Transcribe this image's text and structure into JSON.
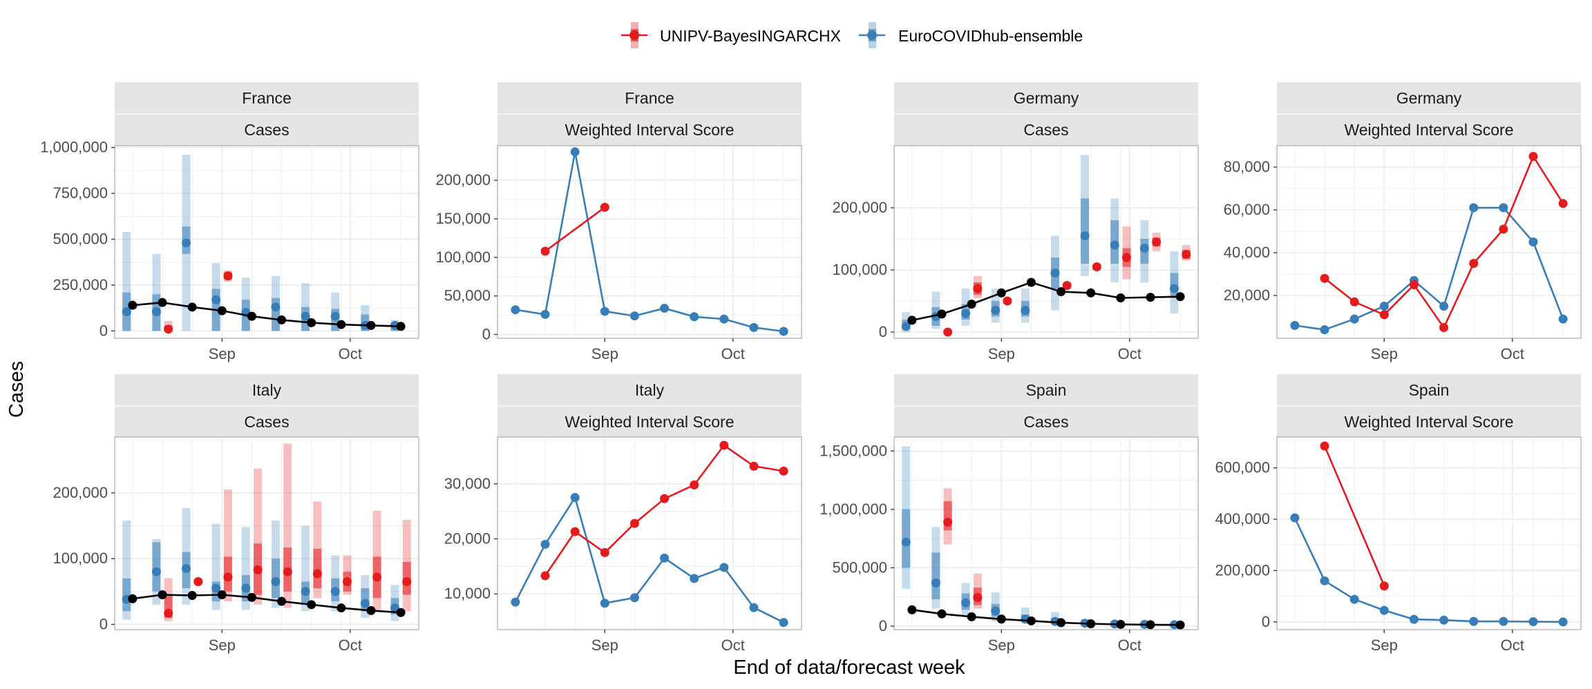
{
  "colors": {
    "model": "#e41a1c",
    "ensemble": "#377eb8",
    "truth": "#000000",
    "strip_bg": "#e5e5e5",
    "grid": "#ebebeb",
    "panel_border": "#b3b3b3"
  },
  "legend": {
    "model": "UNIPV-BayesINGARCHX",
    "ensemble": "EuroCOVIDhub-ensemble"
  },
  "axis_titles": {
    "y": "Cases",
    "x": "End of data/forecast week"
  },
  "chart_data": [
    {
      "type": "line",
      "country": "France",
      "measure": "Cases",
      "x_ticks": [
        "Sep",
        "Oct"
      ],
      "y_ticks": [
        "0",
        "250,000",
        "500,000",
        "750,000",
        "1,000,000"
      ],
      "ylim": [
        -40000,
        1010000
      ],
      "truth": [
        [
          -3,
          140000
        ],
        [
          -2,
          155000
        ],
        [
          -1,
          130000
        ],
        [
          0,
          110000
        ],
        [
          1,
          80000
        ],
        [
          2,
          60000
        ],
        [
          3,
          45000
        ],
        [
          4,
          35000
        ],
        [
          5,
          30000
        ],
        [
          6,
          25000
        ]
      ],
      "ensemble": [
        [
          -3.2,
          105000,
          50,
          540000,
          70,
          210000
        ],
        [
          -2.2,
          105000,
          50,
          420000,
          60,
          200000
        ],
        [
          -1.2,
          480000,
          200,
          960000,
          420000,
          570000
        ],
        [
          -0.2,
          170000,
          70,
          370000,
          120,
          230000
        ],
        [
          0.8,
          100000,
          50,
          290000,
          60,
          170000
        ],
        [
          1.8,
          130000,
          50,
          300000,
          80,
          180000
        ],
        [
          2.8,
          80000,
          40,
          260000,
          50,
          130000
        ],
        [
          3.8,
          80000,
          30,
          210000,
          50,
          120000
        ],
        [
          4.8,
          30000,
          20,
          140000,
          25,
          90000
        ],
        [
          5.8,
          30000,
          10,
          60000,
          20,
          45000
        ]
      ],
      "model": [
        [
          -1.8,
          10000,
          0,
          55000,
          0,
          30000
        ],
        [
          0.2,
          300000,
          270000,
          330000,
          280000,
          320000
        ]
      ]
    },
    {
      "type": "line",
      "country": "France",
      "measure": "Weighted Interval Score",
      "x_ticks": [
        "Sep",
        "Oct"
      ],
      "y_ticks": [
        "0",
        "50,000",
        "100,000",
        "150,000",
        "200,000"
      ],
      "ylim": [
        -5000,
        245000
      ],
      "ensemble_line": [
        [
          -3,
          32000
        ],
        [
          -2,
          26000
        ],
        [
          -1,
          237000
        ],
        [
          0,
          30000
        ],
        [
          1,
          24000
        ],
        [
          2,
          34000
        ],
        [
          3,
          23000
        ],
        [
          4,
          20000
        ],
        [
          5,
          9000
        ],
        [
          6,
          4000
        ]
      ],
      "model_line": [
        [
          -2,
          108000
        ],
        [
          0,
          165000
        ]
      ]
    },
    {
      "type": "line",
      "country": "Germany",
      "measure": "Cases",
      "x_ticks": [
        "Sep",
        "Oct"
      ],
      "y_ticks": [
        "0",
        "100,000",
        "200,000"
      ],
      "ylim": [
        -10000,
        300000
      ],
      "truth": [
        [
          -3,
          19000
        ],
        [
          -2,
          29000
        ],
        [
          -1,
          45000
        ],
        [
          0,
          63000
        ],
        [
          1,
          80000
        ],
        [
          2,
          65000
        ],
        [
          3,
          63000
        ],
        [
          4,
          55000
        ],
        [
          5,
          56000
        ],
        [
          6,
          57000
        ]
      ],
      "ensemble": [
        [
          -3.2,
          9000,
          0,
          32000,
          5000,
          20000
        ],
        [
          -2.2,
          25000,
          5000,
          65000,
          10000,
          40000
        ],
        [
          -1.2,
          30000,
          10000,
          70000,
          20000,
          45000
        ],
        [
          -0.2,
          35000,
          15000,
          70000,
          25000,
          50000
        ],
        [
          0.8,
          35000,
          15000,
          70000,
          25000,
          50000
        ],
        [
          1.8,
          95000,
          35000,
          155000,
          70000,
          120000
        ],
        [
          2.8,
          155000,
          90000,
          285000,
          110000,
          215000
        ],
        [
          3.8,
          140000,
          80000,
          215000,
          110000,
          180000
        ],
        [
          4.8,
          135000,
          80000,
          180000,
          110000,
          150000
        ],
        [
          5.8,
          70000,
          30000,
          130000,
          55000,
          95000
        ]
      ],
      "model": [
        [
          -1.8,
          0,
          0,
          0,
          0,
          0
        ],
        [
          -0.8,
          70000,
          55000,
          90000,
          60000,
          80000
        ],
        [
          0.2,
          50000,
          45000,
          55000,
          47000,
          53000
        ],
        [
          2.2,
          75000,
          70000,
          80000,
          72000,
          78000
        ],
        [
          3.2,
          105000,
          100000,
          110000,
          102000,
          108000
        ],
        [
          4.2,
          120000,
          85000,
          170000,
          105000,
          135000
        ],
        [
          5.2,
          145000,
          130000,
          160000,
          138000,
          152000
        ],
        [
          6.2,
          125000,
          115000,
          140000,
          118000,
          132000
        ]
      ]
    },
    {
      "type": "line",
      "country": "Germany",
      "measure": "Weighted Interval Score",
      "x_ticks": [
        "Sep",
        "Oct"
      ],
      "y_ticks": [
        "20,000",
        "40,000",
        "60,000",
        "80,000"
      ],
      "ylim": [
        0,
        90000
      ],
      "ensemble_line": [
        [
          -3,
          6000
        ],
        [
          -2,
          4000
        ],
        [
          -1,
          9000
        ],
        [
          0,
          15000
        ],
        [
          1,
          27000
        ],
        [
          2,
          15000
        ],
        [
          3,
          61000
        ],
        [
          4,
          61000
        ],
        [
          5,
          45000
        ],
        [
          6,
          9000
        ]
      ],
      "model_line": [
        [
          -2,
          28000
        ],
        [
          -1,
          17000
        ],
        [
          0,
          11000
        ],
        [
          1,
          25000
        ],
        [
          2,
          5000
        ],
        [
          3,
          35000
        ],
        [
          4,
          51000
        ],
        [
          5,
          85000
        ],
        [
          6,
          63000
        ]
      ]
    },
    {
      "type": "line",
      "country": "Italy",
      "measure": "Cases",
      "x_ticks": [
        "Sep",
        "Oct"
      ],
      "y_ticks": [
        "0",
        "100,000",
        "200,000"
      ],
      "ylim": [
        -8000,
        285000
      ],
      "truth": [
        [
          -3,
          39000
        ],
        [
          -2,
          45000
        ],
        [
          -1,
          44000
        ],
        [
          0,
          45000
        ],
        [
          1,
          41000
        ],
        [
          2,
          35000
        ],
        [
          3,
          30000
        ],
        [
          4,
          25000
        ],
        [
          5,
          21000
        ],
        [
          6,
          18000
        ]
      ],
      "ensemble": [
        [
          -3.2,
          38000,
          7000,
          158000,
          20000,
          70000
        ],
        [
          -2.2,
          80000,
          30000,
          130000,
          50000,
          125000
        ],
        [
          -1.2,
          85000,
          30000,
          177000,
          55000,
          110000
        ],
        [
          -0.2,
          55000,
          22000,
          153000,
          35000,
          65000
        ],
        [
          0.8,
          55000,
          22000,
          148000,
          35000,
          75000
        ],
        [
          1.8,
          65000,
          25000,
          158000,
          40000,
          100000
        ],
        [
          2.8,
          50000,
          20000,
          150000,
          30000,
          65000
        ],
        [
          3.8,
          50000,
          20000,
          105000,
          35000,
          70000
        ],
        [
          4.8,
          32000,
          10000,
          75000,
          20000,
          55000
        ],
        [
          5.8,
          25000,
          5000,
          60000,
          15000,
          40000
        ]
      ],
      "model": [
        [
          -1.8,
          17000,
          5000,
          70000,
          10000,
          45000
        ],
        [
          -0.8,
          65000,
          60000,
          70000,
          62000,
          68000
        ],
        [
          0.2,
          72000,
          35000,
          205000,
          50000,
          103000
        ],
        [
          1.2,
          83000,
          30000,
          237000,
          45000,
          123000
        ],
        [
          2.2,
          80000,
          25000,
          275000,
          50000,
          117000
        ],
        [
          3.2,
          77000,
          40000,
          187000,
          55000,
          115000
        ],
        [
          4.2,
          65000,
          45000,
          105000,
          50000,
          80000
        ],
        [
          5.2,
          72000,
          20000,
          173000,
          40000,
          103000
        ],
        [
          6.2,
          65000,
          20000,
          159000,
          45000,
          95000
        ]
      ]
    },
    {
      "type": "line",
      "country": "Italy",
      "measure": "Weighted Interval Score",
      "x_ticks": [
        "Sep",
        "Oct"
      ],
      "y_ticks": [
        "10,000",
        "20,000",
        "30,000"
      ],
      "ylim": [
        3500,
        38500
      ],
      "ensemble_line": [
        [
          -3,
          8500
        ],
        [
          -2,
          19000
        ],
        [
          -1,
          27500
        ],
        [
          0,
          8300
        ],
        [
          1,
          9300
        ],
        [
          2,
          16500
        ],
        [
          3,
          12800
        ],
        [
          4,
          14800
        ],
        [
          5,
          7500
        ],
        [
          6,
          4800
        ]
      ],
      "model_line": [
        [
          -2,
          13300
        ],
        [
          -1,
          21300
        ],
        [
          0,
          17500
        ],
        [
          1,
          22800
        ],
        [
          2,
          27300
        ],
        [
          3,
          29800
        ],
        [
          4,
          37000
        ],
        [
          5,
          33200
        ],
        [
          6,
          32300
        ]
      ]
    },
    {
      "type": "line",
      "country": "Spain",
      "measure": "Cases",
      "x_ticks": [
        "Sep",
        "Oct"
      ],
      "y_ticks": [
        "0",
        "500,000",
        "1,000,000",
        "1,500,000"
      ],
      "ylim": [
        -30000,
        1620000
      ],
      "truth": [
        [
          -3,
          140000
        ],
        [
          -2,
          105000
        ],
        [
          -1,
          80000
        ],
        [
          0,
          60000
        ],
        [
          1,
          45000
        ],
        [
          2,
          30000
        ],
        [
          3,
          20000
        ],
        [
          4,
          15000
        ],
        [
          5,
          12000
        ],
        [
          6,
          10000
        ]
      ],
      "ensemble": [
        [
          -3.2,
          720000,
          320000,
          1540000,
          500000,
          1000000
        ],
        [
          -2.2,
          370000,
          150000,
          850000,
          230000,
          630000
        ],
        [
          -1.2,
          200000,
          80000,
          370000,
          140000,
          280000
        ],
        [
          -0.2,
          130000,
          40000,
          290000,
          80000,
          190000
        ],
        [
          0.8,
          60000,
          25000,
          160000,
          40000,
          100000
        ],
        [
          1.8,
          40000,
          15000,
          120000,
          25000,
          70000
        ],
        [
          2.8,
          25000,
          8000,
          60000,
          15000,
          40000
        ],
        [
          3.8,
          18000,
          5000,
          45000,
          10000,
          30000
        ],
        [
          4.8,
          15000,
          4000,
          35000,
          8000,
          25000
        ],
        [
          5.8,
          12000,
          3000,
          30000,
          6000,
          20000
        ]
      ],
      "model": [
        [
          -1.8,
          890000,
          700000,
          1180000,
          820000,
          1070000
        ],
        [
          -0.8,
          245000,
          150000,
          450000,
          180000,
          330000
        ]
      ]
    },
    {
      "type": "line",
      "country": "Spain",
      "measure": "Weighted Interval Score",
      "x_ticks": [
        "Sep",
        "Oct"
      ],
      "y_ticks": [
        "0",
        "200,000",
        "400,000",
        "600,000"
      ],
      "ylim": [
        -30000,
        720000
      ],
      "ensemble_line": [
        [
          -3,
          405000
        ],
        [
          -2,
          160000
        ],
        [
          -1,
          88000
        ],
        [
          0,
          45000
        ],
        [
          1,
          10000
        ],
        [
          2,
          7000
        ],
        [
          3,
          2000
        ],
        [
          4,
          2000
        ],
        [
          5,
          1000
        ],
        [
          6,
          0
        ]
      ],
      "model_line": [
        [
          -2,
          685000
        ],
        [
          0,
          140000
        ]
      ]
    }
  ]
}
